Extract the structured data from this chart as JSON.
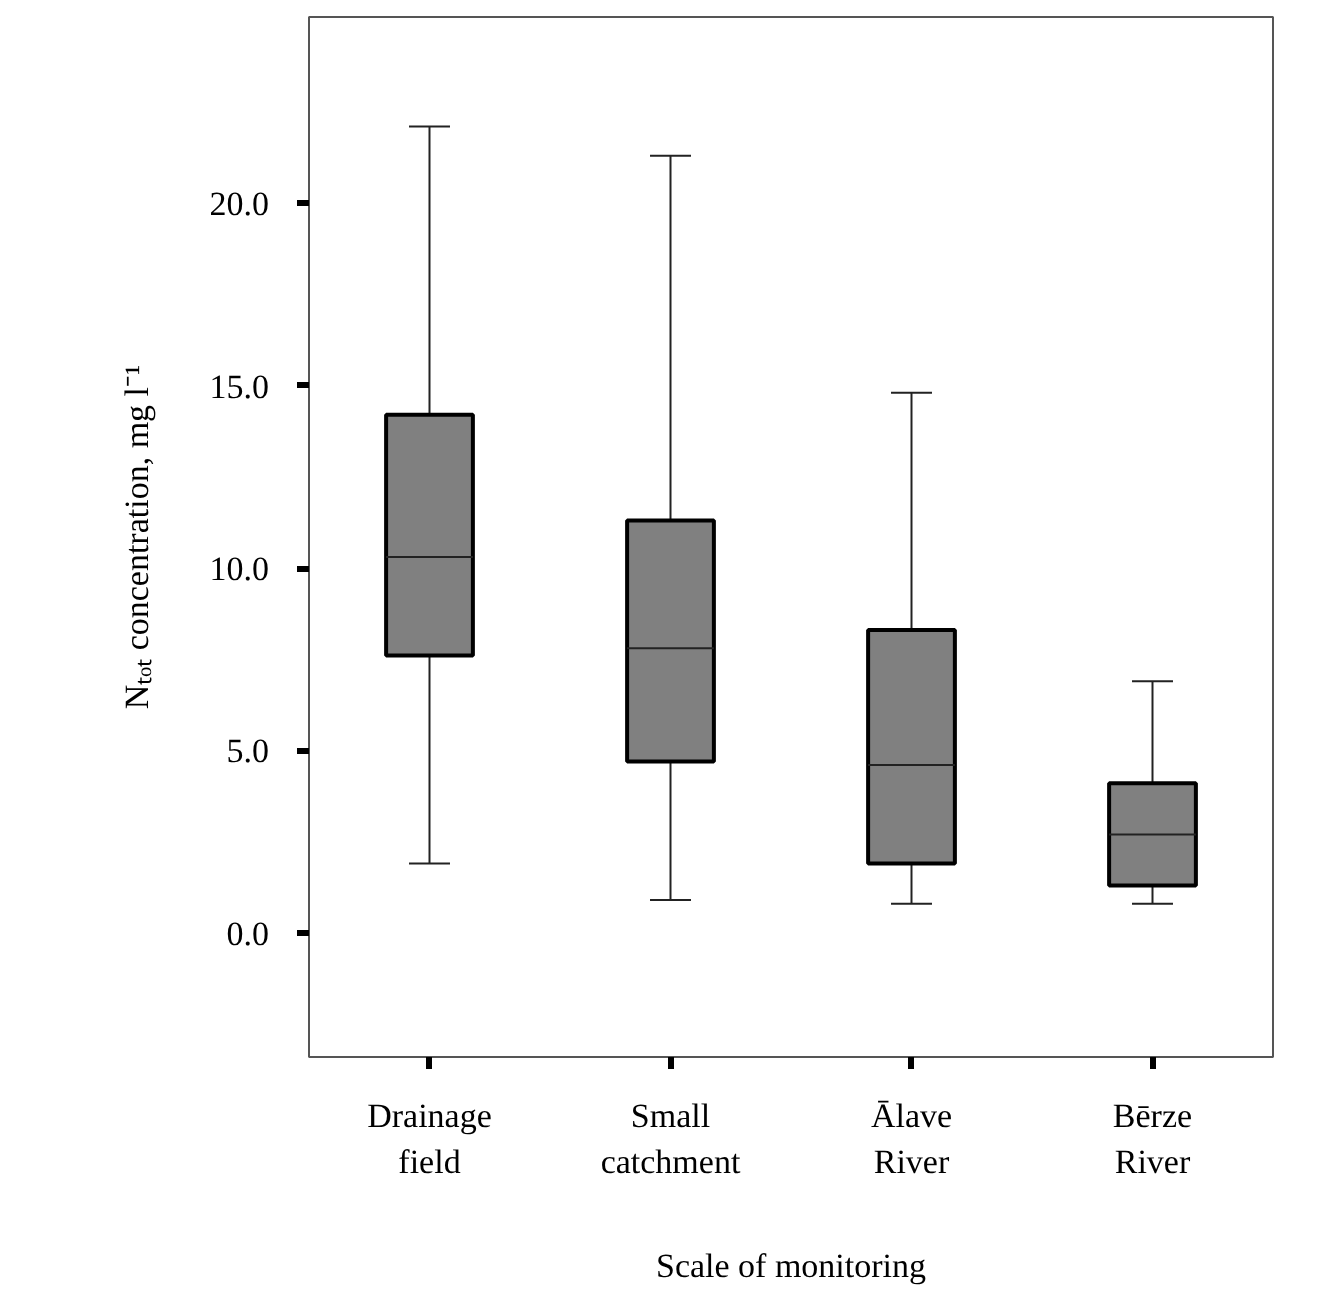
{
  "chart_data": {
    "type": "box",
    "xlabel": "Scale of monitoring",
    "ylabel": "Nₜₒₜ concentration, mg l⁻¹",
    "categories": [
      "Drainage\nfield",
      "Small\ncatchment",
      "Ālave\nRiver",
      "Bērze\nRiver"
    ],
    "color": "#808080",
    "boxes": [
      {
        "low": 1.9,
        "q1": 7.6,
        "median": 10.3,
        "q3": 14.2,
        "high": 22.1
      },
      {
        "low": 0.9,
        "q1": 4.7,
        "median": 7.8,
        "q3": 11.3,
        "high": 21.3
      },
      {
        "low": 0.8,
        "q1": 1.9,
        "median": 4.6,
        "q3": 8.3,
        "high": 14.8
      },
      {
        "low": 0.8,
        "q1": 1.3,
        "median": 2.7,
        "q3": 4.1,
        "high": 6.9
      }
    ],
    "ylim": [
      -3.4,
      25.1
    ],
    "yticks": [
      {
        "value": 0,
        "label": "0.0"
      },
      {
        "value": 5,
        "label": "5.0"
      },
      {
        "value": 10,
        "label": "10.0"
      },
      {
        "value": 15,
        "label": "15.0"
      },
      {
        "value": 20,
        "label": "20.0"
      }
    ],
    "grid": false
  }
}
